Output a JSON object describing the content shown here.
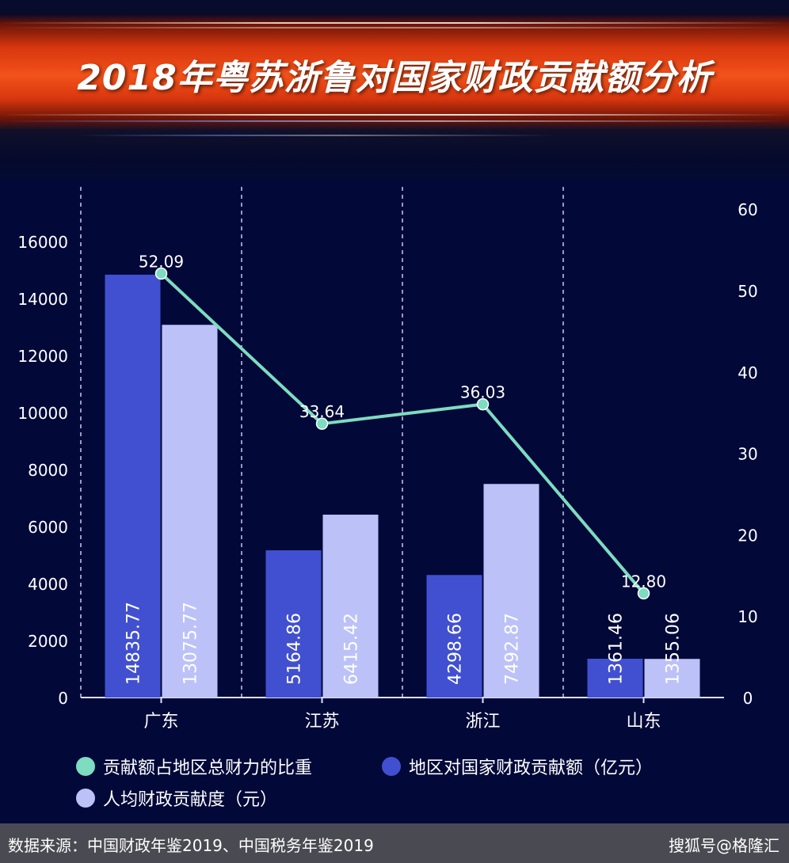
{
  "title": "2018年粤苏浙鲁对国家财政贡献额分析",
  "source": "数据来源：中国财政年鉴2019、中国税务年鉴2019",
  "watermark": "搜狐号@格隆汇",
  "colors": {
    "bar_contribution": "#4150d0",
    "bar_per_capita": "#bcc2f8",
    "line_ratio": "#7edcc0",
    "background": "#020838"
  },
  "legend": [
    {
      "label": "贡献额占地区总财力的比重",
      "color": "#7edcc0"
    },
    {
      "label": "地区对国家财政贡献额（亿元）",
      "color": "#4150d0"
    },
    {
      "label": "人均财政贡献度（元）",
      "color": "#bcc2f8"
    }
  ],
  "chart_data": {
    "type": "bar",
    "categories": [
      "广东",
      "江苏",
      "浙江",
      "山东"
    ],
    "series": [
      {
        "name": "地区对国家财政贡献额（亿元）",
        "type": "bar",
        "axis": "left",
        "values": [
          14835.77,
          5164.86,
          4298.66,
          1361.46
        ],
        "labels": [
          "14835.77",
          "5164.86",
          "4298.66",
          "1361.46"
        ]
      },
      {
        "name": "人均财政贡献度（元）",
        "type": "bar",
        "axis": "left",
        "values": [
          13075.77,
          6415.42,
          7492.87,
          1355.06
        ],
        "labels": [
          "13075.77",
          "6415.42",
          "7492.87",
          "1355.06"
        ]
      },
      {
        "name": "贡献额占地区总财力的比重",
        "type": "line",
        "axis": "right",
        "values": [
          52.09,
          33.64,
          36.03,
          12.8
        ],
        "labels": [
          "52.09",
          "33.64",
          "36.03",
          "12.80"
        ]
      }
    ],
    "ylim_left": [
      0,
      17000
    ],
    "yticks_left": [
      "0",
      "2000",
      "4000",
      "6000",
      "8000",
      "10000",
      "12000",
      "14000",
      "16000"
    ],
    "ylim_right": [
      0,
      60
    ],
    "yticks_right": [
      "0",
      "10",
      "20",
      "30",
      "40",
      "50",
      "60"
    ],
    "grid": "vertical dashed separators",
    "legend_position": "bottom"
  }
}
